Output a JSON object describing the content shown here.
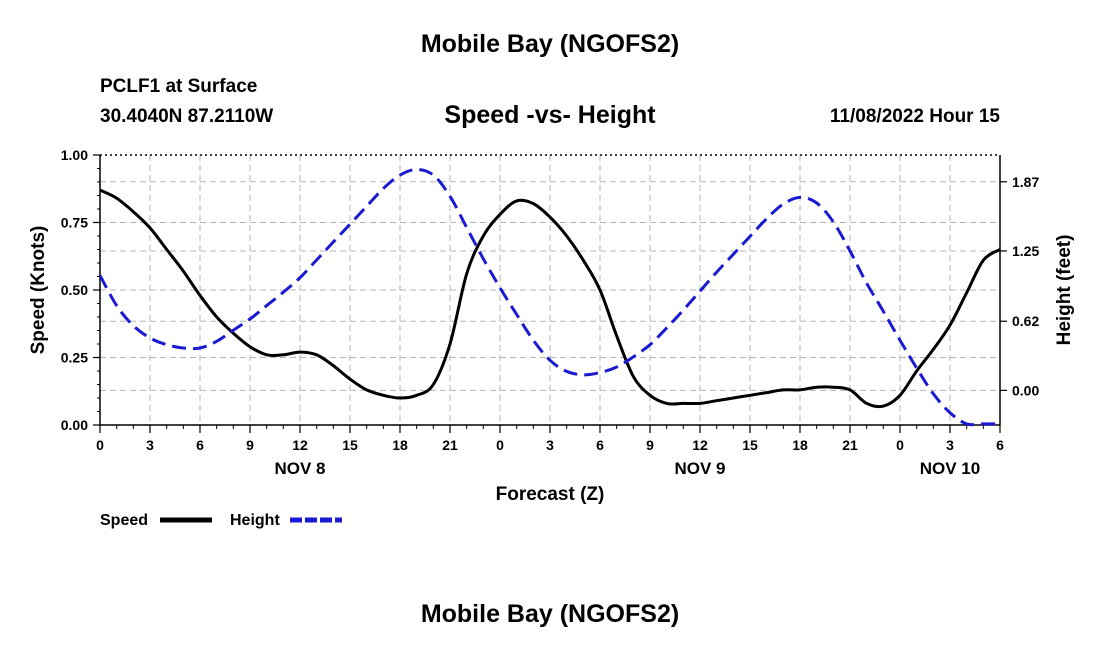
{
  "header": {
    "title": "Mobile Bay (NGOFS2)",
    "station": "PCLF1 at Surface",
    "coords": "30.4040N  87.2110W",
    "subtitle": "Speed -vs- Height",
    "datetime": "11/08/2022 Hour 15"
  },
  "footer": {
    "title": "Mobile Bay (NGOFS2)"
  },
  "chart_data": {
    "type": "line",
    "xlabel": "Forecast (Z)",
    "ylabel_left": "Speed (Knots)",
    "ylabel_right": "Height (feet)",
    "x": [
      0,
      1,
      2,
      3,
      4,
      5,
      6,
      7,
      8,
      9,
      10,
      11,
      12,
      13,
      14,
      15,
      16,
      17,
      18,
      19,
      20,
      21,
      22,
      23,
      24,
      25,
      26,
      27,
      28,
      29,
      30,
      31,
      32,
      33,
      34,
      35,
      36,
      37,
      38,
      39,
      40,
      41,
      42,
      43,
      44,
      45,
      46,
      47,
      48,
      49,
      50,
      51,
      52,
      53,
      54
    ],
    "x_tick_positions": [
      0,
      3,
      6,
      9,
      12,
      15,
      18,
      21,
      24,
      27,
      30,
      33,
      36,
      39,
      42,
      45,
      48,
      51,
      54
    ],
    "x_tick_labels": [
      "0",
      "3",
      "6",
      "9",
      "12",
      "15",
      "18",
      "21",
      "0",
      "3",
      "6",
      "9",
      "12",
      "15",
      "18",
      "21",
      "0",
      "3",
      "6"
    ],
    "day_labels": [
      {
        "x": 12,
        "label": "NOV 8"
      },
      {
        "x": 36,
        "label": "NOV 9"
      },
      {
        "x": 51,
        "label": "NOV 10"
      }
    ],
    "ylim_left": [
      0,
      1.0
    ],
    "yticks_left": [
      0.0,
      0.25,
      0.5,
      0.75,
      1.0
    ],
    "yticks_left_labels": [
      "0.00",
      "0.25",
      "0.50",
      "0.75",
      "1.00"
    ],
    "ylim_right": [
      -0.31,
      2.11
    ],
    "yticks_right": [
      0.0,
      0.62,
      1.25,
      1.87
    ],
    "yticks_right_labels": [
      "0.00",
      "0.62",
      "1.25",
      "1.87"
    ],
    "grid": true,
    "legend_position": "bottom-left",
    "series": [
      {
        "name": "Speed",
        "axis": "left",
        "color": "#000000",
        "dash": "solid",
        "values": [
          0.87,
          0.84,
          0.79,
          0.73,
          0.65,
          0.57,
          0.48,
          0.4,
          0.34,
          0.29,
          0.26,
          0.26,
          0.27,
          0.26,
          0.22,
          0.17,
          0.13,
          0.11,
          0.1,
          0.11,
          0.15,
          0.3,
          0.56,
          0.7,
          0.78,
          0.83,
          0.82,
          0.77,
          0.7,
          0.61,
          0.5,
          0.33,
          0.18,
          0.11,
          0.08,
          0.08,
          0.08,
          0.09,
          0.1,
          0.11,
          0.12,
          0.13,
          0.13,
          0.14,
          0.14,
          0.13,
          0.08,
          0.07,
          0.11,
          0.2,
          0.28,
          0.37,
          0.49,
          0.61,
          0.65
        ]
      },
      {
        "name": "Height",
        "axis": "right",
        "color": "#1a1ad2",
        "dash": "dashed",
        "values": [
          1.03,
          0.76,
          0.58,
          0.47,
          0.41,
          0.38,
          0.38,
          0.44,
          0.54,
          0.64,
          0.76,
          0.88,
          1.01,
          1.17,
          1.33,
          1.49,
          1.65,
          1.81,
          1.93,
          1.98,
          1.93,
          1.74,
          1.46,
          1.18,
          0.92,
          0.68,
          0.45,
          0.27,
          0.17,
          0.14,
          0.16,
          0.21,
          0.3,
          0.41,
          0.56,
          0.72,
          0.89,
          1.06,
          1.22,
          1.38,
          1.54,
          1.67,
          1.73,
          1.68,
          1.51,
          1.25,
          0.96,
          0.71,
          0.45,
          0.2,
          -0.03,
          -0.2,
          -0.3,
          -0.3,
          -0.3
        ]
      }
    ]
  }
}
